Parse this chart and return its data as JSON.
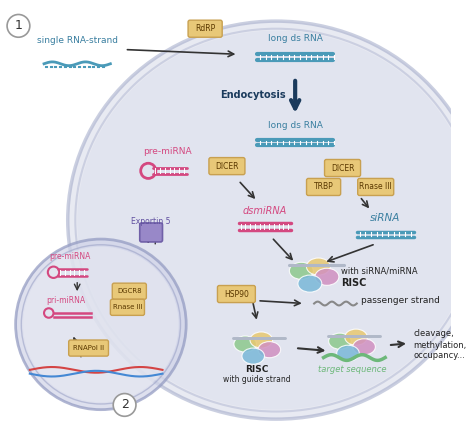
{
  "bg_color": "#ffffff",
  "cell_color": "#d6d9e8",
  "cell_edge_color": "#a0a8c8",
  "nucleus_color": "#c8cce0",
  "nucleus_edge_color": "#8890b8",
  "arrow_color": "#1a3a5c",
  "rna_blue": "#4a9ab8",
  "rna_pink": "#d44880",
  "rna_green": "#6db87a",
  "enzyme_fill": "#e8c878",
  "enzyme_edge": "#c8a050",
  "text_blue": "#3a7fa0",
  "text_pink": "#c83870",
  "text_dark": "#222222",
  "exportin_color": "#9888c8",
  "title_num_1": "1",
  "title_num_2": "2",
  "labels": {
    "single_rna": "single RNA-strand",
    "long_ds_rna_top": "long ds RNA",
    "endocytosis": "Endocytosis",
    "long_ds_rna_inner": "long ds RNA",
    "pre_mirna": "pre-miRNA",
    "dsmiRNA": "dsmiRNA",
    "siRNA": "siRNA",
    "risc_with": "RISC",
    "risc_sub1": "with siRNA/miRNA",
    "hsp90": "HSP90",
    "passenger": "passenger strand",
    "risc_guide": "RISC",
    "risc_guide_sub": "with guide strand",
    "target_seq": "target sequence",
    "cleavage": "cleavage,",
    "methylation": "methylation,",
    "occupancy": "occupancy...",
    "exportin5": "Exportin 5",
    "pre_mirna_nuc": "pre-miRNA",
    "pri_mirna": "pri-miRNA",
    "rnapolii": "RNAPol II",
    "dgcr8": "DGCR8",
    "rnase_nuc": "Rnase III",
    "dicer_left": "DICER",
    "dicer_right": "DICER",
    "trbp": "TRBP",
    "rnase_right": "Rnase III",
    "rdrp": "RdRP"
  }
}
